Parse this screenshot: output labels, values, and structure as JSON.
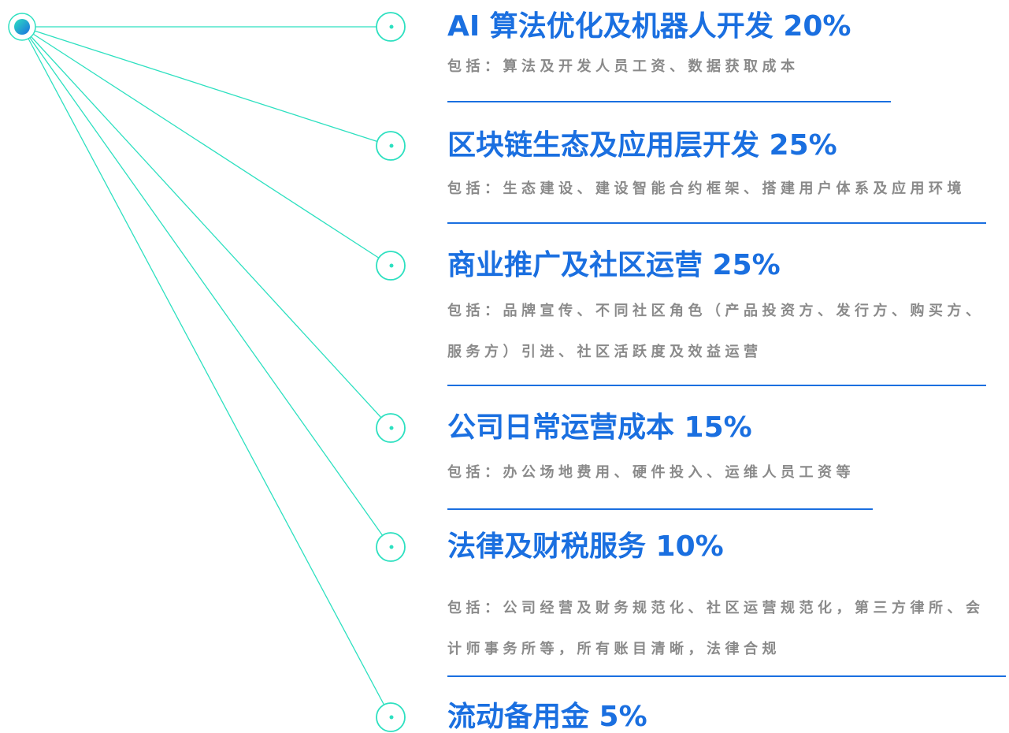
{
  "items": [
    {
      "title": "AI 算法优化及机器人开发 20%",
      "desc": [
        "包括：算法及开发人员工资、数据获取成本"
      ]
    },
    {
      "title": "区块链生态及应用层开发 25%",
      "desc": [
        "包括：生态建设、建设智能合约框架、搭建用户体系及应用环境"
      ]
    },
    {
      "title": "商业推广及社区运营 25%",
      "desc": [
        "包括：品牌宣传、不同社区角色（产品投资方、发行方、购买方、",
        "服务方）引进、社区活跃度及效益运营"
      ]
    },
    {
      "title": "公司日常运营成本 15%",
      "desc": [
        "包括：办公场地费用、硬件投入、运维人员工资等"
      ]
    },
    {
      "title": "法律及财税服务 10%",
      "desc": [
        "包括：公司经营及财务规范化、社区运营规范化，第三方律所、会",
        "计师事务所等，所有账目清晰，法律合规"
      ]
    },
    {
      "title": "流动备用金 5%",
      "desc": []
    }
  ]
}
